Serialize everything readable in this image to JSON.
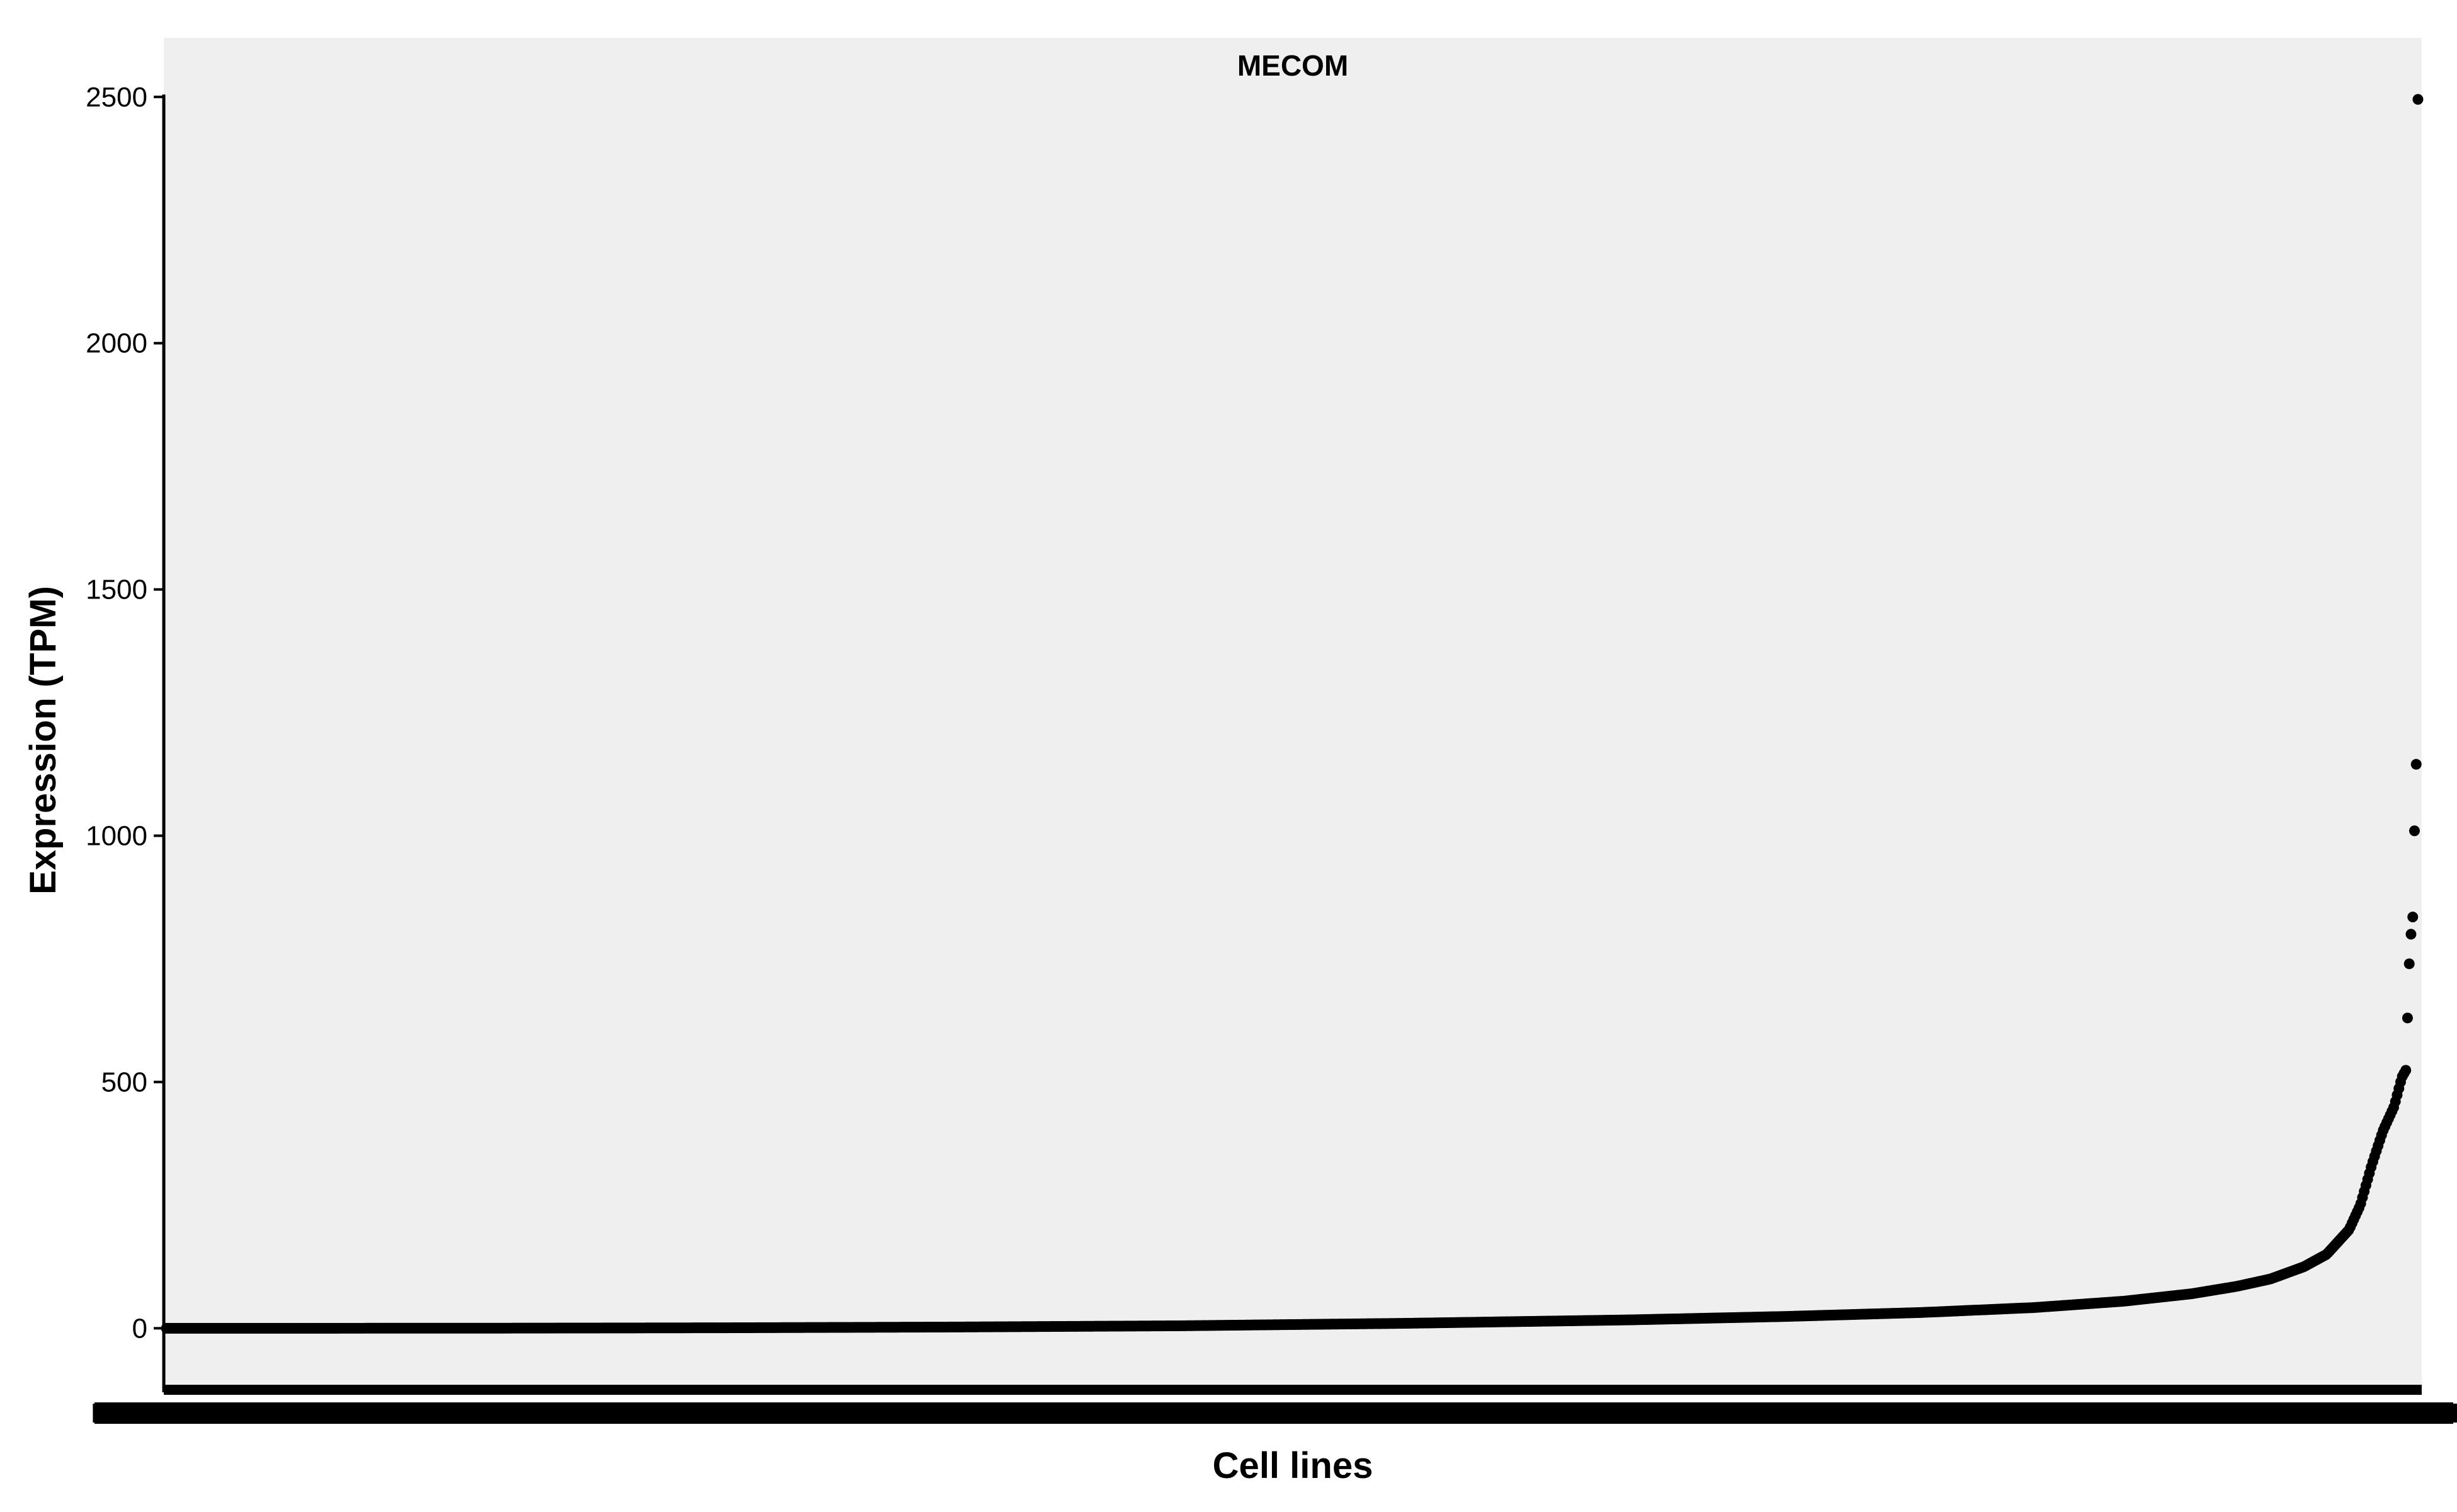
{
  "chart_data": {
    "type": "scatter",
    "title": "",
    "facet_label": "MECOM",
    "xlabel": "Cell lines",
    "ylabel": "Expression (TPM)",
    "ylim": [
      -130,
      2620
    ],
    "y_ticks": [
      0,
      500,
      1000,
      1500,
      2000,
      2500
    ],
    "x_tick_labels_overlapping": "MEM",
    "grid": false,
    "legend": "none",
    "point_color": "#000000",
    "panel_background": "#efefef",
    "n_points": 1300,
    "x_sorted_by": "expression ascending",
    "series": [
      {
        "values_curve_knots": [
          [
            0.0,
            0
          ],
          [
            0.06,
            0
          ],
          [
            0.15,
            0.2
          ],
          [
            0.25,
            1.0
          ],
          [
            0.35,
            2.5
          ],
          [
            0.45,
            5
          ],
          [
            0.55,
            10
          ],
          [
            0.65,
            17
          ],
          [
            0.72,
            24
          ],
          [
            0.78,
            32
          ],
          [
            0.83,
            42
          ],
          [
            0.87,
            55
          ],
          [
            0.9,
            70
          ],
          [
            0.92,
            85
          ],
          [
            0.935,
            100
          ],
          [
            0.95,
            125
          ],
          [
            0.96,
            150
          ],
          [
            0.965,
            175
          ],
          [
            0.97,
            200
          ],
          [
            0.975,
            250
          ],
          [
            0.98,
            330
          ],
          [
            0.985,
            400
          ],
          [
            0.99,
            450
          ],
          [
            0.9935,
            510
          ],
          [
            0.996,
            530
          ]
        ],
        "top_outliers": [
          630,
          740,
          800,
          835,
          1010,
          1145,
          2495
        ]
      }
    ]
  }
}
